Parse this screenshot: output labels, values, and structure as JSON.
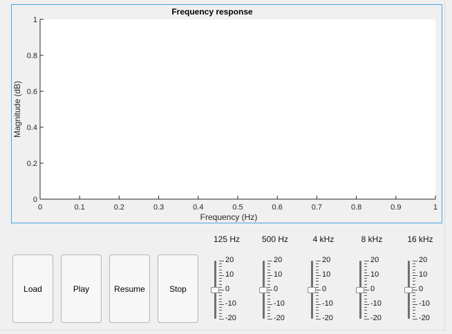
{
  "chart_data": {
    "type": "line",
    "title": "Frequency response",
    "xlabel": "Frequency (Hz)",
    "ylabel": "Magnitude (dB)",
    "xlim": [
      0,
      1
    ],
    "ylim": [
      0,
      1
    ],
    "x_ticks": [
      "0",
      "0.1",
      "0.2",
      "0.3",
      "0.4",
      "0.5",
      "0.6",
      "0.7",
      "0.8",
      "0.9",
      "1"
    ],
    "y_ticks": [
      "0",
      "0.2",
      "0.4",
      "0.6",
      "0.8",
      "1"
    ],
    "grid": false,
    "series": []
  },
  "buttons": {
    "load": "Load",
    "play": "Play",
    "resume": "Resume",
    "stop": "Stop"
  },
  "equalizer": {
    "bands": [
      {
        "label": "125 Hz",
        "value": 0
      },
      {
        "label": "500 Hz",
        "value": 0
      },
      {
        "label": "4 kHz",
        "value": 0
      },
      {
        "label": "8 kHz",
        "value": 0
      },
      {
        "label": "16 kHz",
        "value": 0
      }
    ],
    "scale_labels": [
      "20",
      "10",
      "0",
      "-10",
      "-20"
    ]
  }
}
